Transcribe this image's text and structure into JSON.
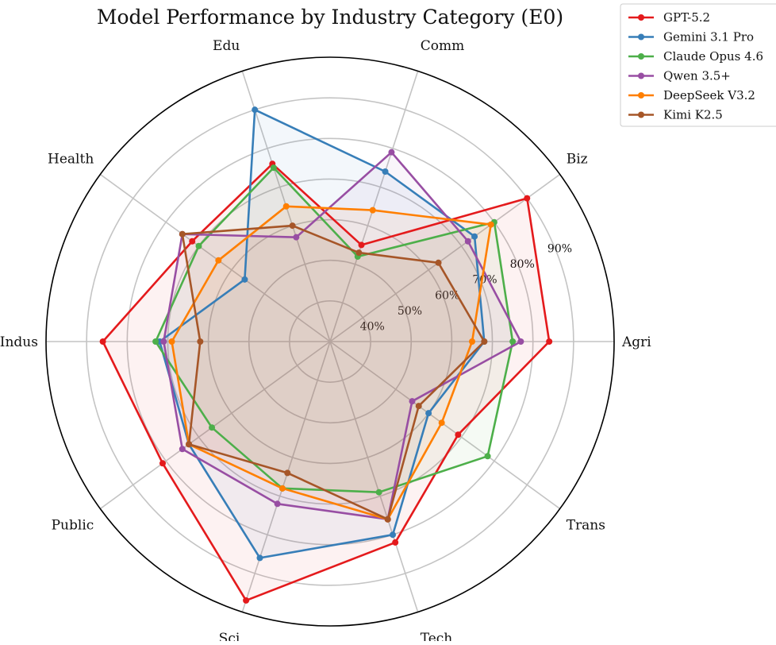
{
  "chart_data": {
    "type": "radar",
    "title": "Model Performance by Industry Category (E0)",
    "categories": [
      "Agri",
      "Biz",
      "Comm",
      "Edu",
      "Health",
      "Indus",
      "Public",
      "Sci",
      "Tech",
      "Trans"
    ],
    "r_range": [
      30,
      100
    ],
    "r_ticks": [
      40,
      50,
      60,
      70,
      80,
      90
    ],
    "r_tick_labels": [
      "40%",
      "50%",
      "60%",
      "70%",
      "80%",
      "90%"
    ],
    "grid": true,
    "legend_position": "top-right",
    "series": [
      {
        "name": "GPT-5.2",
        "color": "#e41a1c",
        "values": [
          84,
          90,
          55,
          76,
          72,
          86,
          81,
          97,
          82,
          69
        ]
      },
      {
        "name": "Gemini 3.1 Pro",
        "color": "#377eb8",
        "values": [
          68,
          74,
          74,
          90,
          56,
          72,
          73,
          86,
          80,
          60
        ]
      },
      {
        "name": "Claude Opus 4.6",
        "color": "#4daf4a",
        "values": [
          75,
          80,
          52,
          75,
          70,
          73,
          66,
          68,
          69,
          78
        ]
      },
      {
        "name": "Qwen 3.5+",
        "color": "#984ea3",
        "values": [
          77,
          72,
          79,
          57,
          75,
          71,
          75,
          72,
          76,
          55
        ]
      },
      {
        "name": "DeepSeek V3.2",
        "color": "#ff7f00",
        "values": [
          65,
          79,
          64,
          65,
          64,
          69,
          73,
          68,
          76,
          64
        ]
      },
      {
        "name": "Kimi K2.5",
        "color": "#a65628",
        "values": [
          68,
          63,
          53,
          60,
          75,
          62,
          73,
          64,
          76,
          57
        ]
      }
    ]
  }
}
